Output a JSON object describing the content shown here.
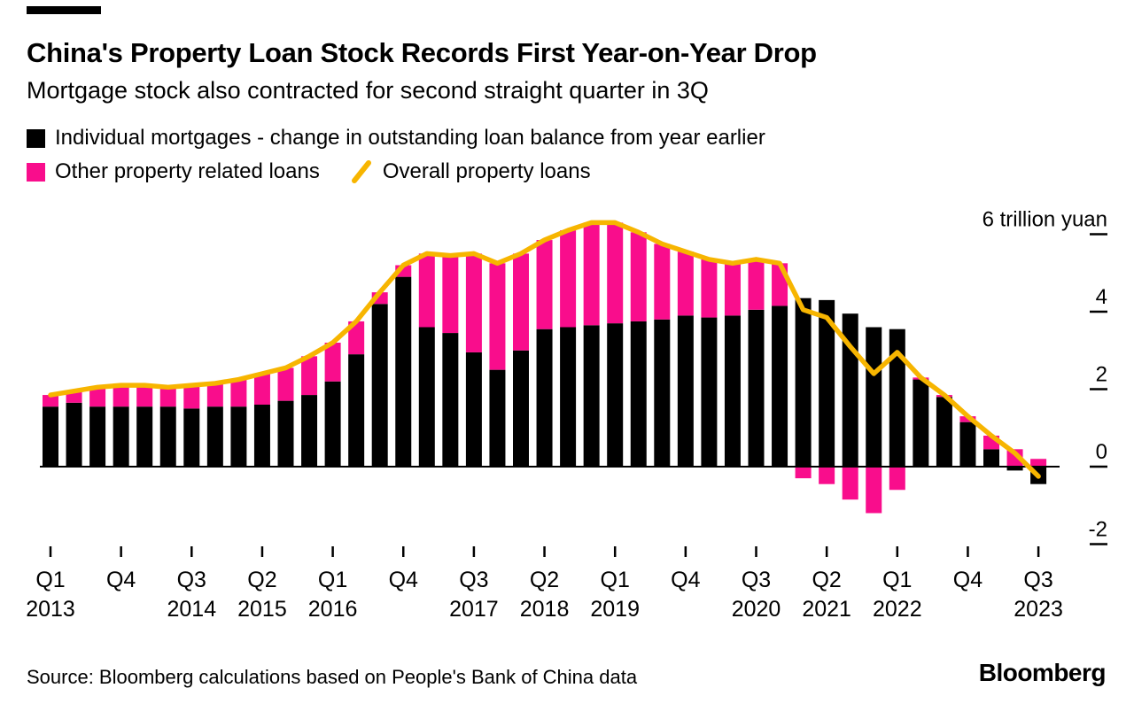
{
  "header": {
    "title": "China's Property Loan Stock Records First Year-on-Year Drop",
    "subtitle": "Mortgage stock also contracted for second straight quarter in 3Q"
  },
  "legend": {
    "items": [
      {
        "label": "Individual mortgages - change in outstanding loan balance from year earlier",
        "swatch": "square",
        "color": "#000000"
      },
      {
        "label": "Other property related loans",
        "swatch": "square",
        "color": "#f90d8c"
      },
      {
        "label": "Overall property loans",
        "swatch": "line",
        "color": "#f7b500"
      }
    ]
  },
  "chart_data": {
    "type": "bar",
    "subtype": "stacked-bars-with-line-overlay",
    "title": "China's Property Loan Stock Records First Year-on-Year Drop",
    "unit": "trillion yuan",
    "grid": false,
    "legend_position": "top-left",
    "categories": [
      "Q1 2013",
      "Q2 2013",
      "Q3 2013",
      "Q4 2013",
      "Q1 2014",
      "Q2 2014",
      "Q3 2014",
      "Q4 2014",
      "Q1 2015",
      "Q2 2015",
      "Q3 2015",
      "Q4 2015",
      "Q1 2016",
      "Q2 2016",
      "Q3 2016",
      "Q4 2016",
      "Q1 2017",
      "Q2 2017",
      "Q3 2017",
      "Q4 2017",
      "Q1 2018",
      "Q2 2018",
      "Q3 2018",
      "Q4 2018",
      "Q1 2019",
      "Q2 2019",
      "Q3 2019",
      "Q4 2019",
      "Q1 2020",
      "Q2 2020",
      "Q3 2020",
      "Q4 2020",
      "Q1 2021",
      "Q2 2021",
      "Q3 2021",
      "Q4 2021",
      "Q1 2022",
      "Q2 2022",
      "Q3 2022",
      "Q4 2022",
      "Q1 2023",
      "Q2 2023",
      "Q3 2023"
    ],
    "series": [
      {
        "name": "Individual mortgages - change in outstanding loan balance from year earlier",
        "type": "bar",
        "color": "#000000",
        "values": [
          1.55,
          1.65,
          1.55,
          1.55,
          1.55,
          1.55,
          1.5,
          1.55,
          1.55,
          1.6,
          1.7,
          1.85,
          2.2,
          2.9,
          4.2,
          4.9,
          3.6,
          3.45,
          2.95,
          2.5,
          3,
          3.55,
          3.6,
          3.65,
          3.7,
          3.75,
          3.8,
          3.9,
          3.85,
          3.9,
          4.05,
          4.15,
          4.35,
          4.3,
          3.95,
          3.6,
          3.55,
          2.25,
          1.8,
          1.15,
          0.45,
          -0.1,
          -0.45
        ]
      },
      {
        "name": "Other property related loans",
        "type": "bar",
        "color": "#f90d8c",
        "values": [
          0.3,
          0.3,
          0.5,
          0.55,
          0.55,
          0.5,
          0.6,
          0.6,
          0.7,
          0.8,
          0.85,
          1,
          1,
          0.85,
          0.3,
          0.3,
          1.9,
          2,
          2.55,
          2.75,
          2.5,
          2.3,
          2.5,
          2.65,
          2.6,
          2.3,
          1.95,
          1.65,
          1.5,
          1.35,
          1.3,
          1.1,
          -0.3,
          -0.45,
          -0.85,
          -1.2,
          -0.6,
          0.05,
          0.05,
          0.15,
          0.35,
          0.45,
          0.2
        ]
      },
      {
        "name": "Overall property loans",
        "type": "line",
        "color": "#f7b500",
        "values": [
          1.85,
          1.95,
          2.05,
          2.1,
          2.1,
          2.05,
          2.1,
          2.15,
          2.25,
          2.4,
          2.55,
          2.85,
          3.2,
          3.75,
          4.5,
          5.2,
          5.5,
          5.45,
          5.5,
          5.25,
          5.5,
          5.85,
          6.1,
          6.3,
          6.3,
          6.05,
          5.75,
          5.55,
          5.35,
          5.25,
          5.35,
          5.25,
          4.05,
          3.85,
          3.1,
          2.4,
          2.95,
          2.3,
          1.85,
          1.3,
          0.8,
          0.35,
          -0.25
        ]
      }
    ],
    "y_axis": {
      "range": [
        -2.7,
        6.6
      ],
      "ticks": [
        {
          "value": 6,
          "label": "6 trillion yuan"
        },
        {
          "value": 4,
          "label": "4"
        },
        {
          "value": 2,
          "label": "2"
        },
        {
          "value": 0,
          "label": "0"
        },
        {
          "value": -2,
          "label": "-2"
        }
      ]
    },
    "x_axis": {
      "ticks": [
        {
          "index": 0,
          "label": "Q1",
          "year": "2013"
        },
        {
          "index": 3,
          "label": "Q4",
          "year": ""
        },
        {
          "index": 6,
          "label": "Q3",
          "year": "2014"
        },
        {
          "index": 9,
          "label": "Q2",
          "year": "2015"
        },
        {
          "index": 12,
          "label": "Q1",
          "year": "2016"
        },
        {
          "index": 15,
          "label": "Q4",
          "year": ""
        },
        {
          "index": 18,
          "label": "Q3",
          "year": "2017"
        },
        {
          "index": 21,
          "label": "Q2",
          "year": "2018"
        },
        {
          "index": 24,
          "label": "Q1",
          "year": "2019"
        },
        {
          "index": 27,
          "label": "Q4",
          "year": ""
        },
        {
          "index": 30,
          "label": "Q3",
          "year": "2020"
        },
        {
          "index": 33,
          "label": "Q2",
          "year": "2021"
        },
        {
          "index": 36,
          "label": "Q1",
          "year": "2022"
        },
        {
          "index": 39,
          "label": "Q4",
          "year": ""
        },
        {
          "index": 42,
          "label": "Q3",
          "year": "2023"
        }
      ]
    }
  },
  "footer": {
    "source": "Source: Bloomberg calculations based on People's Bank of China data",
    "brand": "Bloomberg"
  }
}
